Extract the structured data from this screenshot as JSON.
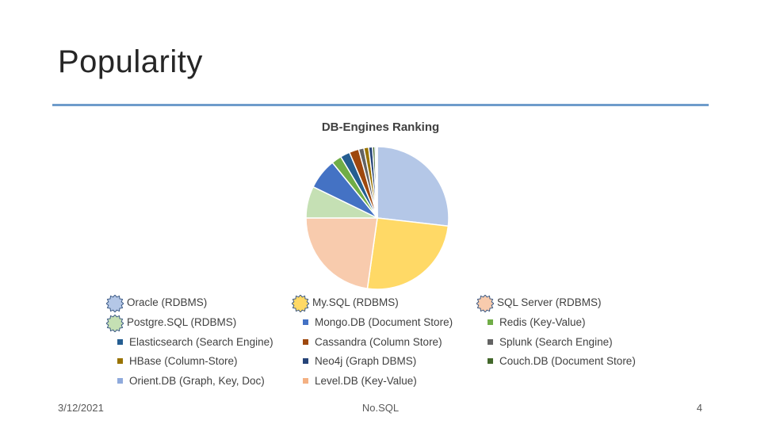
{
  "slide": {
    "title": "Popularity",
    "date": "3/12/2021",
    "footer_center": "No.SQL",
    "page_number": "4"
  },
  "chart_data": {
    "type": "pie",
    "title": "DB-Engines Ranking",
    "legend_placement": "bottom",
    "categories": [
      "Oracle (RDBMS)",
      "My.SQL (RDBMS)",
      "SQL Server (RDBMS)",
      "Postgre.SQL (RDBMS)",
      "Mongo.DB (Document Store)",
      "Redis (Key-Value)",
      "Elasticsearch (Search Engine)",
      "Cassandra (Column Store)",
      "Splunk (Search Engine)",
      "HBase (Column-Store)",
      "Neo4j (Graph DBMS)",
      "Couch.DB (Document Store)",
      "Orient.DB (Graph, Key, Doc)",
      "Level.DB (Key-Value)"
    ],
    "values": [
      24.7,
      23.4,
      21.0,
      6.6,
      6.4,
      2.1,
      2.0,
      2.0,
      1.1,
      1.0,
      0.8,
      0.5,
      0.3,
      0.2
    ],
    "colors": [
      "#b4c7e7",
      "#ffd966",
      "#f8cbad",
      "#c5e0b4",
      "#4472c4",
      "#70ad47",
      "#255e91",
      "#9e480e",
      "#636363",
      "#997300",
      "#264478",
      "#43682b",
      "#8faadc",
      "#f4b183"
    ]
  }
}
